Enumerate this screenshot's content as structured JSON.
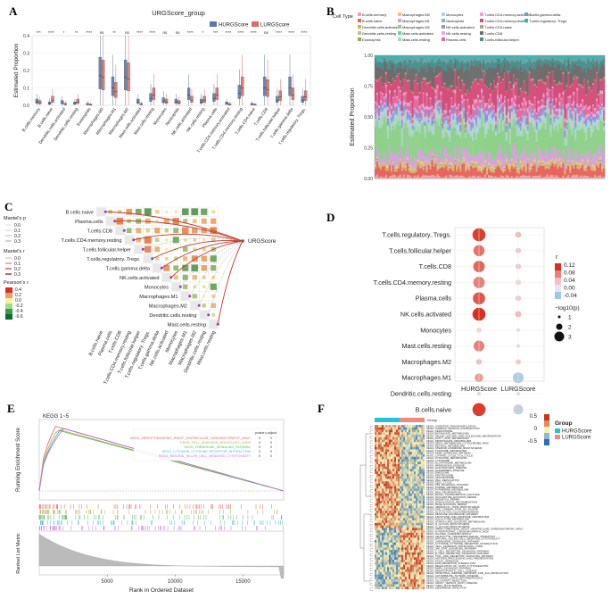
{
  "figure": {
    "panels": [
      "A",
      "B",
      "C",
      "D",
      "E",
      "F"
    ]
  },
  "chart_data": [
    {
      "panel": "A",
      "type": "box",
      "title": "URGScore_group",
      "legend": [
        "HURGScore",
        "LURGScore"
      ],
      "legend_colors": [
        "#5b7aa3",
        "#d96b6b"
      ],
      "ylabel": "Estimated Proportion",
      "ylim": [
        0,
        0.4
      ],
      "yticks": [
        "0.0",
        "0.1",
        "0.2",
        "0.3",
        "0.4"
      ],
      "categories": [
        "B.cells.memory",
        "B.cells.naive",
        "Dendritic.cells.activated",
        "Dendritic.cells.resting",
        "Eosinophils",
        "Macrophages.M0",
        "Macrophages.M1",
        "Macrophages.M2",
        "Mast.cells.activated",
        "Mast.cells.resting",
        "Monocytes",
        "Neutrophils",
        "NK.cells.activated",
        "NK.cells.resting",
        "Plasma.cells",
        "T.cells.CD4.memory.activated",
        "T.cells.CD4.memory.resting",
        "T.cells.CD4.naive",
        "T.cells.CD8",
        "T.cells.follicular.helper",
        "T.cells.gamma.delta",
        "T.cells.regulatory..Tregs."
      ],
      "significance": [
        "***",
        "****",
        "*",
        "**",
        "****",
        "ns",
        "**",
        "ns",
        "****",
        "****",
        "ns",
        "ns",
        "****",
        "*",
        "***",
        "****",
        "****",
        "****",
        "ns",
        "****",
        "****",
        "****"
      ],
      "series": [
        {
          "name": "HURGScore",
          "values": [
            0.02,
            0.01,
            0.015,
            0.01,
            0.005,
            0.17,
            0.1,
            0.16,
            0.02,
            0.04,
            0.025,
            0.02,
            0.06,
            0.02,
            0.04,
            0.01,
            0.07,
            0.005,
            0.1,
            0.03,
            0.1,
            0.03
          ]
        },
        {
          "name": "LURGScore",
          "values": [
            0.015,
            0.03,
            0.005,
            0.02,
            0.002,
            0.16,
            0.08,
            0.15,
            0.005,
            0.06,
            0.02,
            0.015,
            0.03,
            0.03,
            0.06,
            0.004,
            0.1,
            0.002,
            0.09,
            0.05,
            0.06,
            0.05
          ]
        }
      ]
    },
    {
      "panel": "B",
      "type": "area",
      "legend_title": "Cell Type",
      "ylabel": "Estimated Proportion",
      "ylim": [
        0,
        1
      ],
      "yticks": [
        "0.00",
        "0.25",
        "0.50",
        "0.75",
        "1.00"
      ],
      "series": [
        {
          "name": "B.cells.memory",
          "color": "#f2a3a6",
          "value": 0.02
        },
        {
          "name": "B.cells.naive",
          "color": "#e8655f",
          "value": 0.06
        },
        {
          "name": "Dendritic.cells.activated",
          "color": "#d9b547",
          "value": 0.01
        },
        {
          "name": "Dendritic.cells.resting",
          "color": "#c0c0a0",
          "value": 0.01
        },
        {
          "name": "Eosinophils",
          "color": "#a0a060",
          "value": 0.005
        },
        {
          "name": "Macrophages.M0",
          "color": "#f2c185",
          "value": 0.02
        },
        {
          "name": "Macrophages.M1",
          "color": "#cfa7d4",
          "value": 0.08
        },
        {
          "name": "Macrophages.M2",
          "color": "#8fd18a",
          "value": 0.18
        },
        {
          "name": "Mast.cells.activated",
          "color": "#7dcf9a",
          "value": 0.01
        },
        {
          "name": "Mast.cells.resting",
          "color": "#a7d9b4",
          "value": 0.05
        },
        {
          "name": "Monocytes",
          "color": "#b9cfe8",
          "value": 0.04
        },
        {
          "name": "Neutrophils",
          "color": "#7fb2d6",
          "value": 0.02
        },
        {
          "name": "NK.cells.activated",
          "color": "#9b8fd0",
          "value": 0.03
        },
        {
          "name": "NK.cells.resting",
          "color": "#e3a7e6",
          "value": 0.02
        },
        {
          "name": "Plasma.cells",
          "color": "#e06c9b",
          "value": 0.06
        },
        {
          "name": "T.cells.CD4.memory.activated",
          "color": "#f0a0c8",
          "value": 0.02
        },
        {
          "name": "T.cells.CD4.memory.resting",
          "color": "#d44e7a",
          "value": 0.15
        },
        {
          "name": "T.cells.CD4.naive",
          "color": "#b7a37a",
          "value": 0.01
        },
        {
          "name": "T.cells.CD8",
          "color": "#6d6d6d",
          "value": 0.12
        },
        {
          "name": "T.cells.follicular.helper",
          "color": "#4a8f8c",
          "value": 0.05
        },
        {
          "name": "T.cells.gamma.delta",
          "color": "#6fa0a6",
          "value": 0.02
        },
        {
          "name": "T.cells.regulatory..Tregs.",
          "color": "#3fb3b0",
          "value": 0.025
        }
      ]
    },
    {
      "panel": "C",
      "type": "heatmap",
      "target_label": "URGScore",
      "rows": [
        "B.cells.naive",
        "Plasma.cells",
        "T.cells.CD8",
        "T.cells.CD4.memory.resting",
        "T.cells.follicular.helper",
        "T.cells.regulatory..Tregs.",
        "T.cells.gamma.delta",
        "NK.cells.activated",
        "Monocytes",
        "Macrophages.M1",
        "Macrophages.M2",
        "Dendritic.cells.resting",
        "Mast.cells.resting"
      ],
      "legend_mantel_p_title": "Mantel's p",
      "legend_mantel_p": [
        "0.0",
        "0.1",
        "0.2",
        "0.3"
      ],
      "legend_mantel_r_title": "Mantel's r",
      "legend_mantel_r": [
        "0.0",
        "0.1",
        "0.2",
        "0.3"
      ],
      "legend_pearson_title": "Pearson's r",
      "legend_pearson": [
        "0.4",
        "0.2",
        "0.0",
        "-0.2",
        "-0.4",
        "-0.6"
      ]
    },
    {
      "panel": "D",
      "type": "scatter",
      "rows": [
        "T.cells.regulatory..Tregs.",
        "T.cells.follicular.helper",
        "T.cells.CD8",
        "T.cells.CD4.memory.resting",
        "Plasma.cells",
        "NK.cells.activated",
        "Monocytes",
        "Mast.cells.resting",
        "Macrophages.M2",
        "Macrophages.M1",
        "Dendritic.cells.resting",
        "B.cells.naive"
      ],
      "columns": [
        "HURGScore",
        "LURGScore"
      ],
      "legend_r_title": "r",
      "legend_r": [
        "0.12",
        "0.08",
        "0.04",
        "0.00",
        "-0.04"
      ],
      "legend_size_title": "−log10(p)",
      "legend_size": [
        "1",
        "2",
        "3"
      ],
      "r_values": [
        [
          0.11,
          0.02
        ],
        [
          0.07,
          0.01
        ],
        [
          0.08,
          0.01
        ],
        [
          0.06,
          0.0
        ],
        [
          0.09,
          0.01
        ],
        [
          0.12,
          0.02
        ],
        [
          0.0,
          0.0
        ],
        [
          0.06,
          0.0
        ],
        [
          0.02,
          0.01
        ],
        [
          0.04,
          -0.03
        ],
        [
          0.0,
          0.0
        ],
        [
          0.11,
          -0.02
        ]
      ],
      "size_values": [
        [
          3.0,
          1.1
        ],
        [
          2.5,
          1.0
        ],
        [
          2.6,
          1.0
        ],
        [
          2.6,
          1.0
        ],
        [
          2.8,
          1.0
        ],
        [
          3.0,
          1.2
        ],
        [
          0.9,
          0.5
        ],
        [
          2.4,
          0.5
        ],
        [
          1.0,
          0.9
        ],
        [
          1.8,
          2.4
        ],
        [
          0.6,
          0.5
        ],
        [
          3.0,
          2.2
        ]
      ]
    },
    {
      "panel": "E",
      "type": "line",
      "title": "KEGG 1~5",
      "ylabel": "Running Enrichment Score",
      "ylabel_bottom": "Ranked List Metric",
      "xlabel": "Rank in Ordered Dataset",
      "xticks": [
        "5000",
        "10000",
        "15000"
      ],
      "xlim": [
        0,
        18000
      ],
      "ylim": [
        0,
        0.9
      ],
      "pvalue_header": "pvalue  p.adjust",
      "series": [
        {
          "name": "KEGG_ARRHYTHMOGENIC_RIGHT_VENTRICULAR_CARDIOMYOPATHY_ARVC",
          "color": "#e06363",
          "peak": 0.88
        },
        {
          "name": "KEGG_CELL_ADHESION_MOLECULES_CAMS",
          "color": "#b7a84a",
          "peak": 0.84
        },
        {
          "name": "KEGG_CHEMOKINE_SIGNALING_PATHWAY",
          "color": "#5cb85c",
          "peak": 0.82
        },
        {
          "name": "KEGG_CYTOKINE_CYTOKINE_RECEPTOR_INTERACTION",
          "color": "#4fb8c9",
          "peak": 0.86
        },
        {
          "name": "KEGG_NATURAL_KILLER_CELL_MEDIATED_CYTOTOXICITY",
          "color": "#c06fd0",
          "peak": 0.85
        }
      ],
      "pvalues": [
        "0",
        "0",
        "0",
        "0",
        "0"
      ],
      "padjust": [
        "0",
        "0",
        "0",
        "0",
        "0"
      ]
    },
    {
      "panel": "F",
      "type": "heatmap",
      "legend_group_title": "Group",
      "legend_group": [
        "HURGScore",
        "LURGScore"
      ],
      "legend_group_colors": [
        "#22c4d4",
        "#f08a7e"
      ],
      "legend_scale": [
        "0.5",
        "0",
        "-0.5"
      ],
      "column_header": "Group",
      "rows": [
        "KEGG_OXIDATIVE_PHOSPHORYLATION",
        "KEGG_CARDIAC_MUSCLE_CONTRACTION",
        "KEGG_PEROXISOME",
        "KEGG_BUTANOATE_METABOLISM",
        "KEGG_VALINE_LEUCINE_AND_ISOLEUCINE_DEGRADATION",
        "KEGG_FATTY_ACID_METABOLISM",
        "KEGG_PROPANOATE_METABOLISM",
        "KEGG_DRUG_METABOLISM_CYTOCHROME_P450",
        "KEGG_RETINOL_METABOLISM",
        "KEGG_STEROID_HORMONE_BIOSYNTHESIS",
        "KEGG_TYROSINE_METABOLISM",
        "KEGG_PPAR_SIGNALING_PATHWAY",
        "KEGG_CITRATE_CYCLE_TCA_CYCLE",
        "KEGG_PYRUVATE_METABOLISM",
        "KEGG_LYSOSOME",
        "KEGG_GLUTATHIONE_METABOLISM",
        "KEGG_PARKINSONS_DISEASE",
        "KEGG_HUNTINGTONS_DISEASE",
        "KEGG_ALZHEIMERS_DISEASE",
        "KEGG_RIBOSOME",
        "KEGG_PROTEASOME",
        "KEGG_SPLICEOSOME",
        "KEGG_DNA_REPLICATION",
        "KEGG_CELL_CYCLE",
        "KEGG_P53_SIGNALING_PATHWAY",
        "KEGG_PURINE_METABOLISM",
        "KEGG_PYRIMIDINE_METABOLISM",
        "KEGG_RNA_DEGRADATION",
        "KEGG_BASAL_TRANSCRIPTION_FACTORS",
        "KEGG_NUCLEOTIDE_EXCISION_REPAIR",
        "KEGG_MISMATCH_REPAIR",
        "KEGG_HOMOLOGOUS_RECOMBINATION",
        "KEGG_BASE_EXCISION_REPAIR",
        "KEGG_AMINOACYL_TRNA_BIOSYNTHESIS",
        "KEGG_ONE_CARBON_POOL_BY_FOLATE",
        "KEGG_GLYCOLYSIS_GLUCONEOGENESIS",
        "KEGG_PENTOSE_PHOSPHATE_PATHWAY",
        "KEGG_FRUCTOSE_AND_MANNOSE_METABOLISM",
        "KEGG_GALACTOSE_METABOLISM",
        "KEGG_STARCH_AND_SUCROSE_METABOLISM",
        "KEGG_N_GLYCAN_BIOSYNTHESIS",
        "KEGG_O_GLYCAN_BIOSYNTHESIS",
        "KEGG_ARRHYTHMOGENIC_RIGHT_VENTRICULAR_CARDIOMYOPATHY_ARVC",
        "KEGG_HYPERTROPHIC_CARDIOMYOPATHY_HCM",
        "KEGG_DILATED_CARDIOMYOPATHY",
        "KEGG_LEUKOCYTE_TRANSENDOTHELIAL_MIGRATION",
        "KEGG_NATURAL_KILLER_CELL_MEDIATED_CYTOTOXICITY",
        "KEGG_CHEMOKINE_SIGNALING_PATHWAY",
        "KEGG_CYTOKINE_CYTOKINE_RECEPTOR_INTERACTION",
        "KEGG_CELL_ADHESION_MOLECULES_CAMS",
        "KEGG_JAK_STAT_SIGNALING_PATHWAY",
        "KEGG_T_CELL_RECEPTOR_SIGNALING_PATHWAY",
        "KEGG_B_CELL_RECEPTOR_SIGNALING_PATHWAY",
        "KEGG_TOLL_LIKE_RECEPTOR_SIGNALING_PATHWAY",
        "KEGG_ANTIGEN_PROCESSING_AND_PRESENTATION",
        "KEGG_FOCAL_ADHESION",
        "KEGG_ECM_RECEPTOR_INTERACTION",
        "KEGG_REGULATION_OF_ACTIN_CYTOSKELETON",
        "KEGG_MAPK_SIGNALING_PATHWAY",
        "KEGG_HEMATOPOIETIC_CELL_LINEAGE",
        "KEGG_INTESTINAL_IMMUNE_NETWORK_FOR_IGA_PRODUCTION",
        "KEGG_AUTOIMMUNE_THYROID_DISEASE",
        "KEGG_SYSTEMIC_LUPUS_ERYTHEMATOSUS",
        "KEGG_ALLOGRAFT_REJECTION",
        "KEGG_GRAFT_VERSUS_HOST_DISEASE",
        "KEGG_VIRAL_MYOCARDITIS",
        "KEGG_LEISHMANIA_INFECTION"
      ]
    }
  ]
}
